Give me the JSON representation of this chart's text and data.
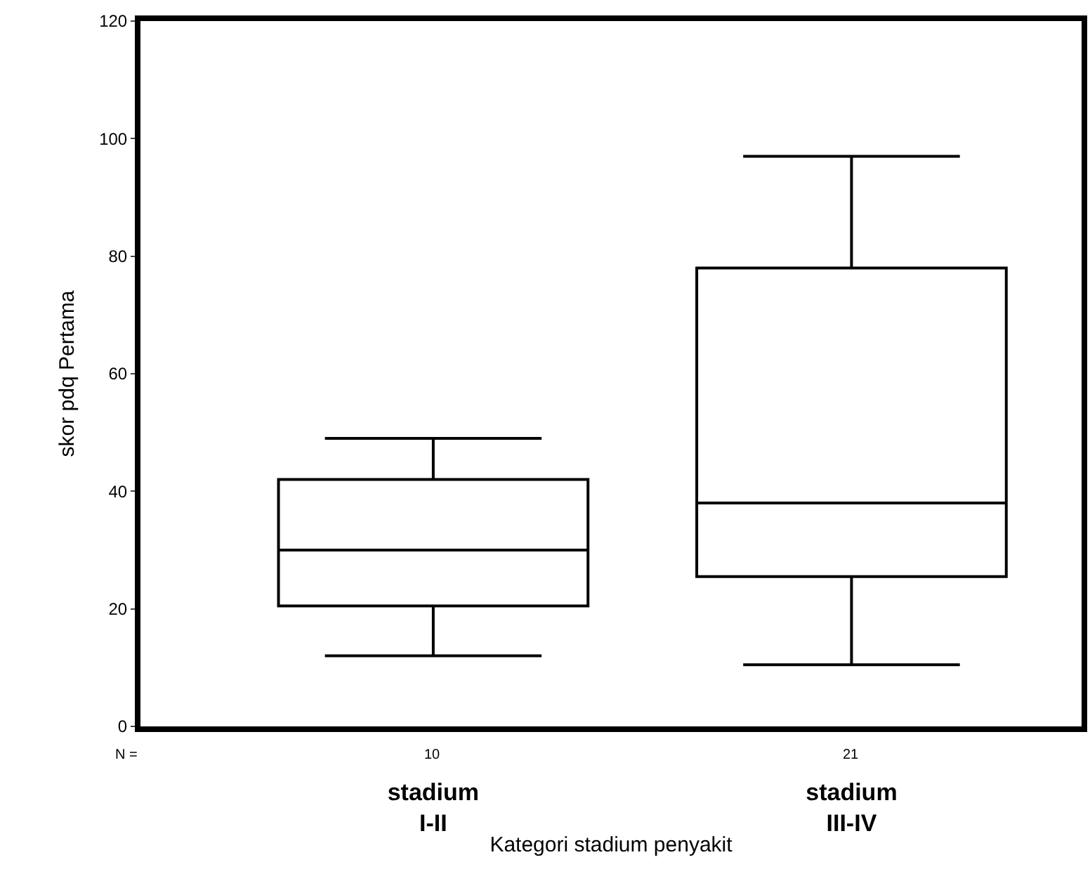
{
  "chart_data": {
    "type": "box",
    "xlabel": "Kategori stadium penyakit",
    "ylabel": "skor pdq Pertama",
    "categories": [
      "stadium\nI-II",
      "stadium\nIII-IV"
    ],
    "boxes": [
      {
        "low": 12,
        "q1": 20.5,
        "median": 30,
        "q3": 42,
        "high": 49
      },
      {
        "low": 10.5,
        "q1": 25.5,
        "median": 38,
        "q3": 78,
        "high": 97
      }
    ],
    "ylim": [
      0,
      120
    ],
    "yticks": [
      0,
      20,
      40,
      60,
      80,
      100,
      120
    ],
    "annotations": [
      "N =",
      "10",
      "21"
    ]
  }
}
